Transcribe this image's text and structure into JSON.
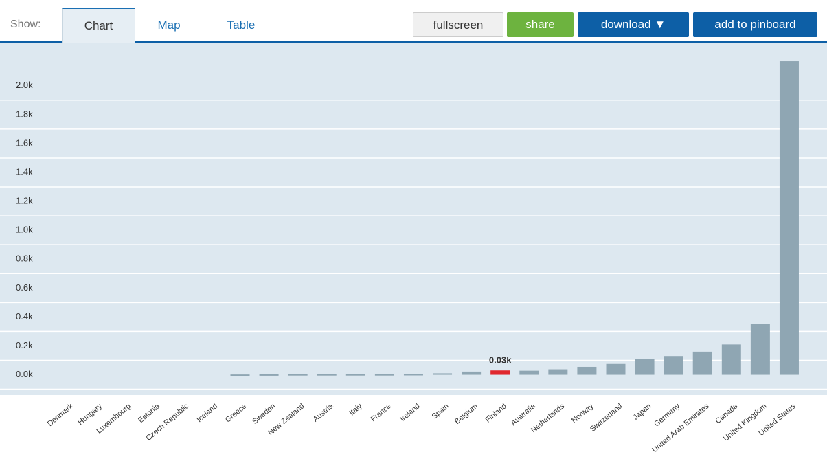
{
  "toolbar": {
    "show_label": "Show:",
    "tabs": [
      "Chart",
      "Map",
      "Table"
    ],
    "buttons": [
      "fullscreen",
      "share",
      "download ▼",
      "add to pinboard"
    ]
  },
  "chart_data": {
    "type": "bar",
    "categories": [
      "Denmark",
      "Hungary",
      "Luxembourg",
      "Estonia",
      "Czech Republic",
      "Iceland",
      "Greece",
      "Sweden",
      "New Zealand",
      "Austria",
      "Italy",
      "France",
      "Ireland",
      "Spain",
      "Belgium",
      "Finland",
      "Australia",
      "Netherlands",
      "Norway",
      "Switzerland",
      "Japan",
      "Germany",
      "United Arab Emirates",
      "Canada",
      "United Kingdom",
      "United States"
    ],
    "values": [
      null,
      null,
      null,
      null,
      null,
      null,
      0.002,
      0.003,
      0.004,
      0.004,
      0.004,
      0.004,
      0.005,
      0.01,
      0.022,
      0.03,
      0.028,
      0.038,
      0.055,
      0.075,
      0.11,
      0.13,
      0.16,
      0.21,
      0.35,
      2.17
    ],
    "value_labels": [
      null,
      null,
      null,
      null,
      null,
      null,
      null,
      null,
      null,
      null,
      null,
      null,
      null,
      null,
      null,
      "0.03k",
      null,
      null,
      null,
      null,
      null,
      null,
      null,
      null,
      null,
      null
    ],
    "color": "#8fa6b3",
    "colors": [
      "#8fa6b3",
      "#8fa6b3",
      "#8fa6b3",
      "#8fa6b3",
      "#8fa6b3",
      "#8fa6b3",
      "#8fa6b3",
      "#8fa6b3",
      "#8fa6b3",
      "#8fa6b3",
      "#8fa6b3",
      "#8fa6b3",
      "#8fa6b3",
      "#8fa6b3",
      "#8fa6b3",
      "#e0282e",
      "#8fa6b3",
      "#8fa6b3",
      "#8fa6b3",
      "#8fa6b3",
      "#8fa6b3",
      "#8fa6b3",
      "#8fa6b3",
      "#8fa6b3",
      "#8fa6b3",
      "#8fa6b3"
    ],
    "ylim": [
      -0.14,
      2.27
    ],
    "yticks": [
      {
        "value": 0,
        "label": "0.0k"
      },
      {
        "value": 0.2,
        "label": "0.2k"
      },
      {
        "value": 0.4,
        "label": "0.4k"
      },
      {
        "value": 0.6,
        "label": "0.6k"
      },
      {
        "value": 0.8,
        "label": "0.8k"
      },
      {
        "value": 1.0,
        "label": "1.0k"
      },
      {
        "value": 1.2,
        "label": "1.2k"
      },
      {
        "value": 1.4,
        "label": "1.4k"
      },
      {
        "value": 1.6,
        "label": "1.6k"
      },
      {
        "value": 1.8,
        "label": "1.8k"
      },
      {
        "value": 2.0,
        "label": "2.0k"
      }
    ],
    "grid": true
  }
}
